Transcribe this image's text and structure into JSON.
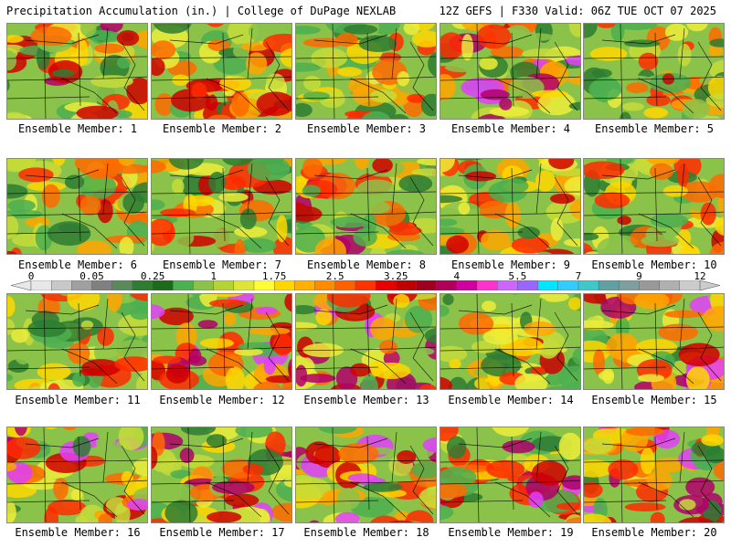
{
  "header": {
    "left": "Precipitation Accumulation (in.) | College of DuPage NEXLAB",
    "right": "12Z GEFS | F330 Valid: 06Z TUE OCT 07 2025"
  },
  "members": [
    {
      "label": "Ensemble Member: 1",
      "intensity": 0.55
    },
    {
      "label": "Ensemble Member: 2",
      "intensity": 0.55
    },
    {
      "label": "Ensemble Member: 3",
      "intensity": 0.35
    },
    {
      "label": "Ensemble Member: 4",
      "intensity": 0.7
    },
    {
      "label": "Ensemble Member: 5",
      "intensity": 0.4
    },
    {
      "label": "Ensemble Member: 6",
      "intensity": 0.5
    },
    {
      "label": "Ensemble Member: 7",
      "intensity": 0.45
    },
    {
      "label": "Ensemble Member: 8",
      "intensity": 0.6
    },
    {
      "label": "Ensemble Member: 9",
      "intensity": 0.5
    },
    {
      "label": "Ensemble Member: 10",
      "intensity": 0.45
    },
    {
      "label": "Ensemble Member: 11",
      "intensity": 0.6
    },
    {
      "label": "Ensemble Member: 12",
      "intensity": 0.85
    },
    {
      "label": "Ensemble Member: 13",
      "intensity": 0.8
    },
    {
      "label": "Ensemble Member: 14",
      "intensity": 0.55
    },
    {
      "label": "Ensemble Member: 15",
      "intensity": 0.85
    },
    {
      "label": "Ensemble Member: 16",
      "intensity": 0.75
    },
    {
      "label": "Ensemble Member: 17",
      "intensity": 0.8
    },
    {
      "label": "Ensemble Member: 18",
      "intensity": 0.85
    },
    {
      "label": "Ensemble Member: 19",
      "intensity": 0.75
    },
    {
      "label": "Ensemble Member: 20",
      "intensity": 0.75
    }
  ],
  "legend": {
    "ticks": [
      "0",
      "0.05",
      "0.25",
      "1",
      "1.75",
      "2.5",
      "3.25",
      "4",
      "5.5",
      "7",
      "9",
      "12"
    ],
    "colors": [
      "#e8e8e8",
      "#c8c8c8",
      "#a0a0a0",
      "#808080",
      "#5a8a5a",
      "#2e7d32",
      "#1b6b1b",
      "#4caf50",
      "#8bc34a",
      "#b5d334",
      "#dde635",
      "#ffff33",
      "#ffd700",
      "#ffb000",
      "#ff8c00",
      "#ff6000",
      "#ff3300",
      "#e60000",
      "#c00000",
      "#a00020",
      "#b0005a",
      "#d000a0",
      "#ff33cc",
      "#cc66ff",
      "#9966ff",
      "#00e5ff",
      "#33ccff",
      "#40c8c8",
      "#60a0a0",
      "#7f9f9f",
      "#999999",
      "#b0b0b0",
      "#cccccc"
    ]
  }
}
